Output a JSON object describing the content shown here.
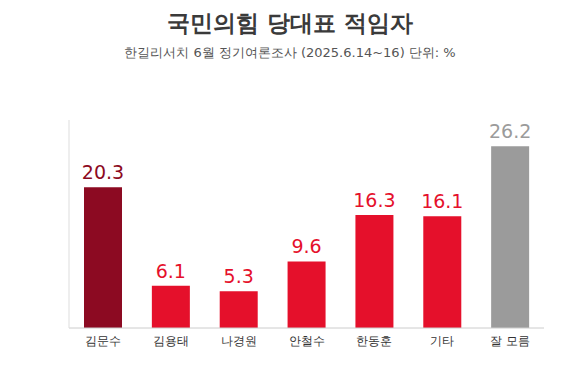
{
  "chart_data": {
    "type": "bar",
    "title": "국민의힘 당대표 적임자",
    "subtitle": "한길리서치 6월 정기여론조사 (2025.6.14~16) 단위: %",
    "categories": [
      "김문수",
      "김용태",
      "나경원",
      "안철수",
      "한동훈",
      "기타",
      "잘 모름"
    ],
    "values": [
      20.3,
      6.1,
      5.3,
      9.6,
      16.3,
      16.1,
      26.2
    ],
    "colors": [
      "#8c0a22",
      "#e5102b",
      "#e5102b",
      "#e5102b",
      "#e5102b",
      "#e5102b",
      "#9b9b9b"
    ],
    "ylim": [
      0,
      30
    ],
    "grid": false,
    "data_labels": true,
    "tick_labels": "x"
  }
}
